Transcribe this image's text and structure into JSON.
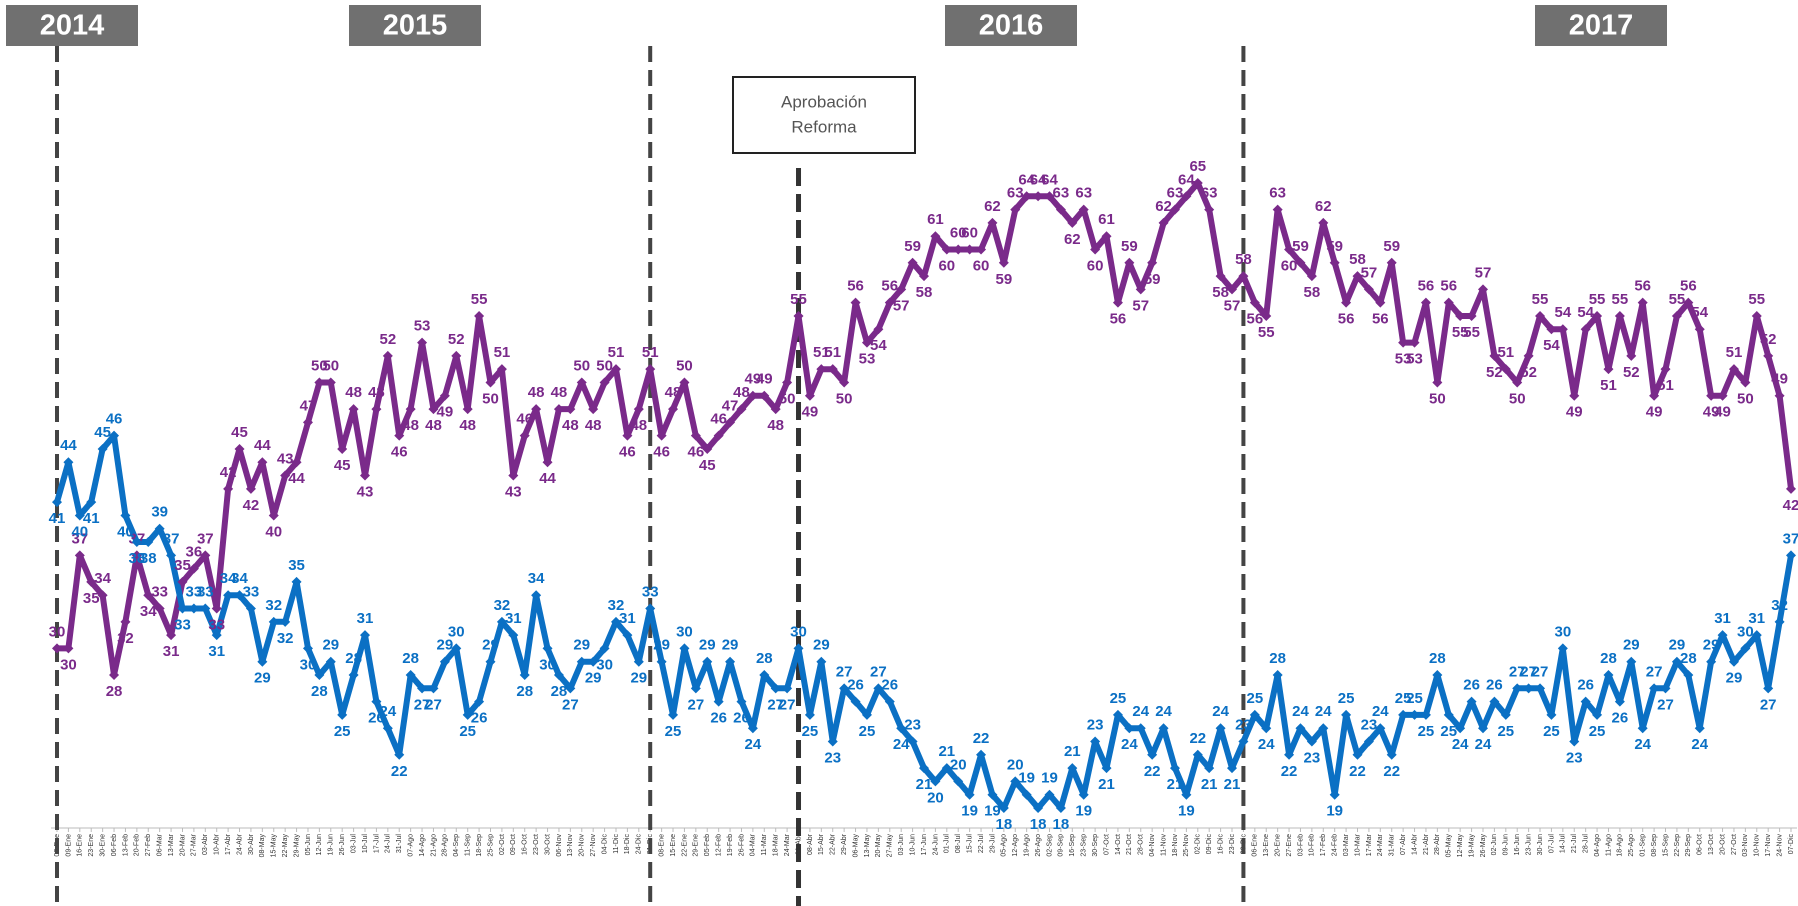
{
  "chart_data": {
    "type": "line",
    "annotations": {
      "years": [
        "2014",
        "2015",
        "2016",
        "2017"
      ],
      "reform": [
        "Aprobación",
        "Reforma"
      ]
    },
    "categories": [
      "02-Ene",
      "09-Ene",
      "16-Ene",
      "23-Ene",
      "30-Ene",
      "06-Feb",
      "13-Feb",
      "20-Feb",
      "27-Feb",
      "06-Mar",
      "13-Mar",
      "20-Mar",
      "27-Mar",
      "03-Abr",
      "10-Abr",
      "17-Abr",
      "24-Abr",
      "30-Abr",
      "08-May",
      "15-May",
      "22-May",
      "29-May",
      "05-Jun",
      "12-Jun",
      "19-Jun",
      "26-Jun",
      "03-Jul",
      "10-Jul",
      "17-Jul",
      "24-Jul",
      "31-Jul",
      "07-Ago",
      "14-Ago",
      "21-Ago",
      "28-Ago",
      "04-Sep",
      "11-Sep",
      "18-Sep",
      "25-Sep",
      "02-Oct",
      "09-Oct",
      "16-Oct",
      "23-Oct",
      "30-Oct",
      "06-Nov",
      "13-Nov",
      "20-Nov",
      "27-Nov",
      "04-Dic",
      "11-Dic",
      "18-Dic",
      "24-Dic",
      "31-Dic",
      "08-Ene",
      "15-Ene",
      "22-Ene",
      "29-Ene",
      "05-Feb",
      "12-Feb",
      "19-Feb",
      "26-Feb",
      "04-Mar",
      "11-Mar",
      "18-Mar",
      "24-Mar",
      "01-Abr",
      "08-Abr",
      "15-Abr",
      "22-Abr",
      "29-Abr",
      "06-May",
      "13-May",
      "20-May",
      "27-May",
      "03-Jun",
      "10-Jun",
      "17-Jun",
      "24-Jun",
      "01-Jul",
      "08-Jul",
      "15-Jul",
      "22-Jul",
      "29-Jul",
      "05-Ago",
      "12-Ago",
      "19-Ago",
      "26-Ago",
      "02-Sep",
      "09-Sep",
      "16-Sep",
      "23-Sep",
      "30-Sep",
      "07-Oct",
      "14-Oct",
      "21-Oct",
      "28-Oct",
      "04-Nov",
      "11-Nov",
      "18-Nov",
      "25-Nov",
      "02-Dic",
      "09-Dic",
      "16-Dic",
      "23-Dic",
      "30-Dic",
      "06-Ene",
      "13-Ene",
      "20-Ene",
      "27-Ene",
      "03-Feb",
      "10-Feb",
      "17-Feb",
      "24-Feb",
      "03-Mar",
      "10-Mar",
      "17-Mar",
      "24-Mar",
      "31-Mar",
      "07-Abr",
      "14-Abr",
      "21-Abr",
      "28-Abr",
      "05-May",
      "12-May",
      "19-May",
      "26-May",
      "02-Jun",
      "09-Jun",
      "16-Jun",
      "23-Jun",
      "30-Jun",
      "07-Jul",
      "14-Jul",
      "21-Jul",
      "28-Jul",
      "04-Ago",
      "11-Ago",
      "18-Ago",
      "25-Ago",
      "01-Sep",
      "08-Sep",
      "15-Sep",
      "22-Sep",
      "29-Sep",
      "06-Oct",
      "13-Oct",
      "20-Oct",
      "27-Oct",
      "03-Nov",
      "10-Nov",
      "17-Nov",
      "24-Nov",
      "07-Dic"
    ],
    "series": [
      {
        "color": "#7a2a8a",
        "values": [
          30,
          30,
          37,
          35,
          34,
          28,
          32,
          37,
          34,
          33,
          31,
          35,
          36,
          37,
          33,
          42,
          45,
          42,
          44,
          40,
          43,
          44,
          47,
          50,
          50,
          45,
          48,
          43,
          48,
          52,
          46,
          48,
          53,
          48,
          49,
          52,
          48,
          55,
          50,
          51,
          43,
          46,
          48,
          44,
          48,
          48,
          50,
          48,
          50,
          51,
          46,
          48,
          51,
          46,
          48,
          50,
          46,
          45,
          46,
          47,
          48,
          49,
          49,
          48,
          50,
          55,
          49,
          51,
          51,
          50,
          56,
          53,
          54,
          56,
          57,
          59,
          58,
          61,
          60,
          60,
          60,
          60,
          62,
          59,
          63,
          64,
          64,
          64,
          63,
          62,
          63,
          60,
          61,
          56,
          59,
          57,
          59,
          62,
          63,
          64,
          65,
          63,
          58,
          57,
          58,
          56,
          55,
          63,
          60,
          59,
          58,
          62,
          59,
          56,
          58,
          57,
          56,
          59,
          53,
          53,
          56,
          50,
          56,
          55,
          55,
          57,
          52,
          51,
          50,
          52,
          55,
          54,
          54,
          49,
          54,
          55,
          51,
          55,
          52,
          56,
          49,
          51,
          55,
          56,
          54,
          49,
          49,
          51,
          50,
          55,
          52,
          49,
          42
        ]
      },
      {
        "color": "#0b70c4",
        "values": [
          41,
          44,
          40,
          41,
          45,
          46,
          40,
          38,
          38,
          39,
          37,
          33,
          33,
          33,
          31,
          34,
          34,
          33,
          29,
          32,
          32,
          35,
          30,
          28,
          29,
          25,
          28,
          31,
          26,
          24,
          22,
          28,
          27,
          27,
          29,
          30,
          25,
          26,
          29,
          32,
          31,
          28,
          34,
          30,
          28,
          27,
          29,
          29,
          30,
          32,
          31,
          29,
          33,
          29,
          25,
          30,
          27,
          29,
          26,
          29,
          26,
          24,
          28,
          27,
          27,
          30,
          25,
          29,
          23,
          27,
          26,
          25,
          27,
          26,
          24,
          23,
          21,
          20,
          21,
          20,
          19,
          22,
          19,
          18,
          20,
          19,
          18,
          19,
          18,
          21,
          19,
          23,
          21,
          25,
          24,
          24,
          22,
          24,
          21,
          19,
          22,
          21,
          24,
          21,
          23,
          25,
          24,
          28,
          22,
          24,
          23,
          24,
          19,
          25,
          22,
          23,
          24,
          22,
          25,
          25,
          25,
          28,
          25,
          24,
          26,
          24,
          26,
          25,
          27,
          27,
          27,
          25,
          30,
          23,
          26,
          25,
          28,
          26,
          29,
          24,
          27,
          27,
          29,
          28,
          24,
          29,
          31,
          29,
          30,
          31,
          27,
          32,
          37
        ]
      }
    ]
  }
}
